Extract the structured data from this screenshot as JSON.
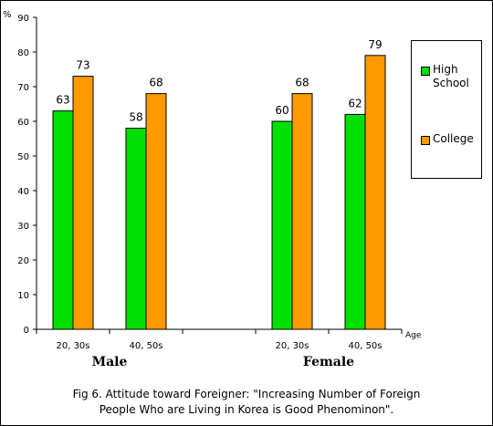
{
  "chart_data": {
    "type": "bar",
    "y_unit": "%",
    "x_unit": "Age",
    "ylim": [
      0,
      90
    ],
    "yticks": [
      0,
      10,
      20,
      30,
      40,
      50,
      60,
      70,
      80,
      90
    ],
    "groups": [
      {
        "name": "Male",
        "categories": [
          {
            "label": "20, 30s",
            "values": [
              63,
              73
            ]
          },
          {
            "label": "40, 50s",
            "values": [
              58,
              68
            ]
          }
        ]
      },
      {
        "name": "Female",
        "categories": [
          {
            "label": "20, 30s",
            "values": [
              60,
              68
            ]
          },
          {
            "label": "40, 50s",
            "values": [
              62,
              79
            ]
          }
        ]
      }
    ],
    "series": [
      {
        "name": "High School",
        "color": "#00e000"
      },
      {
        "name": "College",
        "color": "#ff9900"
      }
    ],
    "legend_position": "right",
    "grid": false
  },
  "caption": {
    "line1": "Fig 6. Attitude toward Foreigner: \"Increasing Number of Foreign",
    "line2": "People Who are Living in Korea is Good Phenominon\"."
  }
}
